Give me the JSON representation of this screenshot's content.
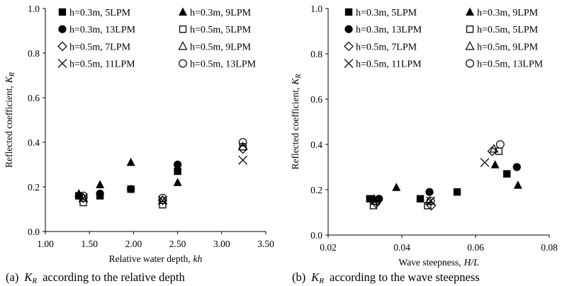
{
  "legend": [
    {
      "id": "h03_5",
      "label": "h=0.3m, 5LPM",
      "marker": "square-filled"
    },
    {
      "id": "h03_9",
      "label": "h=0.3m, 9LPM",
      "marker": "triangle-filled"
    },
    {
      "id": "h03_13",
      "label": "h=0.3m, 13LPM",
      "marker": "circle-filled"
    },
    {
      "id": "h05_5",
      "label": "h=0.5m, 5LPM",
      "marker": "square-open"
    },
    {
      "id": "h05_7",
      "label": "h=0.5m, 7LPM",
      "marker": "diamond-open"
    },
    {
      "id": "h05_9",
      "label": "h=0.5m, 9LPM",
      "marker": "triangle-open"
    },
    {
      "id": "h05_11",
      "label": "h=0.5m, 11LPM",
      "marker": "cross"
    },
    {
      "id": "h05_13",
      "label": "h=0.5m, 13LPM",
      "marker": "circle-open"
    }
  ],
  "chart_data": [
    {
      "type": "scatter",
      "panel": "a",
      "caption_prefix": "(a)",
      "caption_symbol": "K",
      "caption_sub": "R",
      "caption_text": "according to the relative depth",
      "title": "",
      "ylabel": "Reflected coefficient,",
      "ylabel_symbol": "K",
      "ylabel_sub": "R",
      "xlabel": "Relative water depth,",
      "xlabel_symbol": "kh",
      "xlim": [
        1.0,
        3.5
      ],
      "ylim": [
        0.0,
        1.0
      ],
      "xticks": [
        "1.00",
        "1.50",
        "2.00",
        "2.50",
        "3.00",
        "3.50"
      ],
      "xtick_values": [
        1.0,
        1.5,
        2.0,
        2.5,
        3.0,
        3.5
      ],
      "yticks": [
        "0.0",
        "0.2",
        "0.4",
        "0.6",
        "0.8",
        "1.0"
      ],
      "ytick_values": [
        0.0,
        0.2,
        0.4,
        0.6,
        0.8,
        1.0
      ],
      "series": [
        {
          "name": "h=0.3m, 5LPM",
          "x": [
            1.38,
            1.62,
            1.97,
            2.5
          ],
          "y": [
            0.16,
            0.16,
            0.19,
            0.27
          ]
        },
        {
          "name": "h=0.3m, 9LPM",
          "x": [
            1.38,
            1.62,
            1.97,
            2.5
          ],
          "y": [
            0.17,
            0.21,
            0.31,
            0.22
          ]
        },
        {
          "name": "h=0.3m, 13LPM",
          "x": [
            1.38,
            1.62,
            1.97,
            2.5
          ],
          "y": [
            0.16,
            0.17,
            0.19,
            0.3
          ]
        },
        {
          "name": "h=0.5m, 5LPM",
          "x": [
            1.43,
            2.33,
            3.24
          ],
          "y": [
            0.13,
            0.12,
            0.38
          ]
        },
        {
          "name": "h=0.5m, 7LPM",
          "x": [
            1.43,
            2.33,
            3.24
          ],
          "y": [
            0.15,
            0.14,
            0.37
          ]
        },
        {
          "name": "h=0.5m, 9LPM",
          "x": [
            1.43,
            2.33,
            3.24
          ],
          "y": [
            0.15,
            0.14,
            0.38
          ]
        },
        {
          "name": "h=0.5m, 11LPM",
          "x": [
            1.43,
            2.33,
            3.24
          ],
          "y": [
            0.15,
            0.14,
            0.32
          ]
        },
        {
          "name": "h=0.5m, 13LPM",
          "x": [
            1.43,
            2.33,
            3.24
          ],
          "y": [
            0.16,
            0.15,
            0.4
          ]
        }
      ]
    },
    {
      "type": "scatter",
      "panel": "b",
      "caption_prefix": "(b)",
      "caption_symbol": "K",
      "caption_sub": "R",
      "caption_text": "according to the wave steepness",
      "title": "",
      "ylabel": "Reflected coefficient,",
      "ylabel_symbol": "K",
      "ylabel_sub": "R",
      "xlabel": "Wave steepness,",
      "xlabel_symbol": "H/L",
      "xlim": [
        0.02,
        0.08
      ],
      "ylim": [
        0.0,
        1.0
      ],
      "xticks": [
        "0.02",
        "0.04",
        "0.06",
        "0.08"
      ],
      "xtick_values": [
        0.02,
        0.04,
        0.06,
        0.08
      ],
      "yticks": [
        "0.0",
        "0.2",
        "0.4",
        "0.6",
        "0.8",
        "1.0"
      ],
      "ytick_values": [
        0.0,
        0.2,
        0.4,
        0.6,
        0.8,
        1.0
      ],
      "series": [
        {
          "name": "h=0.3m, 5LPM",
          "x": [
            0.0313,
            0.045,
            0.055,
            0.0685
          ],
          "y": [
            0.16,
            0.16,
            0.19,
            0.27
          ]
        },
        {
          "name": "h=0.3m, 9LPM",
          "x": [
            0.0325,
            0.0385,
            0.0653,
            0.0715
          ],
          "y": [
            0.16,
            0.21,
            0.31,
            0.22
          ]
        },
        {
          "name": "h=0.3m, 13LPM",
          "x": [
            0.0338,
            0.0475,
            0.0712
          ],
          "y": [
            0.16,
            0.19,
            0.3
          ]
        },
        {
          "name": "h=0.5m, 5LPM",
          "x": [
            0.0323,
            0.047,
            0.0663
          ],
          "y": [
            0.13,
            0.13,
            0.37
          ]
        },
        {
          "name": "h=0.5m, 7LPM",
          "x": [
            0.033,
            0.048,
            0.0645
          ],
          "y": [
            0.14,
            0.13,
            0.37
          ]
        },
        {
          "name": "h=0.5m, 9LPM",
          "x": [
            0.0328,
            0.0475,
            0.065
          ],
          "y": [
            0.15,
            0.15,
            0.38
          ]
        },
        {
          "name": "h=0.5m, 11LPM",
          "x": [
            0.0325,
            0.0478,
            0.0625
          ],
          "y": [
            0.15,
            0.15,
            0.32
          ]
        },
        {
          "name": "h=0.5m, 13LPM",
          "x": [
            0.033,
            0.0478,
            0.0667
          ],
          "y": [
            0.15,
            0.15,
            0.4
          ]
        }
      ]
    }
  ]
}
